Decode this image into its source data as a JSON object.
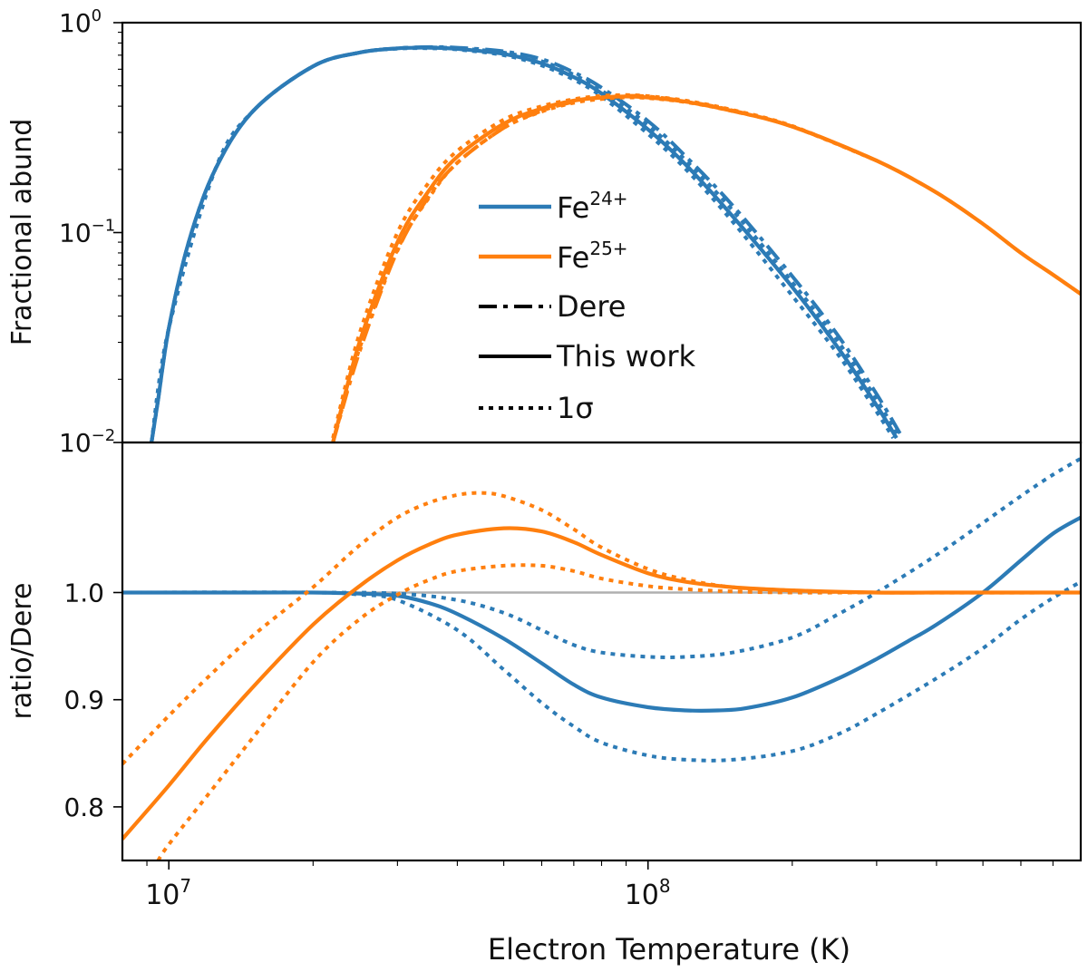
{
  "chart_data": [
    {
      "id": "top",
      "type": "line",
      "title": "",
      "ylabel": "Fractional abund",
      "xlabel": "",
      "x_scale": "log",
      "y_scale": "log",
      "xlim": [
        8000000,
        800000000
      ],
      "ylim": [
        0.01,
        1
      ],
      "y_ticks": [
        {
          "base": "10",
          "exp": "−2",
          "value": 0.01
        },
        {
          "base": "10",
          "exp": "−1",
          "value": 0.1
        },
        {
          "base": "10",
          "exp": "0",
          "value": 1
        }
      ],
      "colors": {
        "fe24": "#2c7bb6",
        "fe25": "#ff7f0e",
        "ink": "#000000"
      },
      "legend": {
        "placement": "center",
        "entries": [
          {
            "name": "fe24",
            "base": "Fe",
            "sup": "24+",
            "style": "solid",
            "color": "#2c7bb6"
          },
          {
            "name": "fe25",
            "base": "Fe",
            "sup": "25+",
            "style": "solid",
            "color": "#ff7f0e"
          },
          {
            "name": "dere",
            "label": "Dere",
            "style": "dashdot",
            "color": "#000000"
          },
          {
            "name": "this-work",
            "label": "This work",
            "style": "solid",
            "color": "#000000"
          },
          {
            "name": "one-sigma",
            "label": "1σ",
            "style": "dotted",
            "color": "#000000"
          }
        ]
      },
      "series": [
        {
          "name": "Fe24+ This work",
          "ion": "fe24",
          "style": "solid",
          "x": [
            9200000,
            9500000,
            10000000,
            11000000,
            12500000,
            15000000,
            20000000,
            25000000,
            30000000,
            35000000,
            40000000,
            50000000,
            60000000,
            70000000,
            80000000,
            100000000,
            120000000,
            150000000,
            200000000,
            250000000,
            300000000,
            330000000
          ],
          "y": [
            0.01,
            0.016,
            0.035,
            0.09,
            0.2,
            0.38,
            0.62,
            0.72,
            0.755,
            0.76,
            0.75,
            0.71,
            0.64,
            0.55,
            0.46,
            0.31,
            0.21,
            0.12,
            0.055,
            0.028,
            0.015,
            0.0105
          ]
        },
        {
          "name": "Fe24+ Dere",
          "ion": "fe24",
          "style": "dashdot",
          "x": [
            9200000,
            9500000,
            10000000,
            11000000,
            12500000,
            15000000,
            20000000,
            25000000,
            30000000,
            35000000,
            40000000,
            50000000,
            60000000,
            70000000,
            80000000,
            100000000,
            120000000,
            150000000,
            200000000,
            250000000,
            300000000,
            340000000
          ],
          "y": [
            0.01,
            0.016,
            0.035,
            0.09,
            0.2,
            0.38,
            0.62,
            0.72,
            0.755,
            0.765,
            0.76,
            0.73,
            0.67,
            0.58,
            0.49,
            0.34,
            0.23,
            0.135,
            0.062,
            0.032,
            0.017,
            0.0105
          ]
        },
        {
          "name": "Fe24+ 1σ upper",
          "ion": "fe24",
          "style": "dotted",
          "x": [
            9200000,
            10000000,
            12500000,
            15000000,
            20000000,
            25000000,
            30000000,
            35000000,
            40000000,
            50000000,
            60000000,
            70000000,
            80000000,
            100000000,
            120000000,
            150000000,
            200000000,
            250000000,
            300000000,
            335000000
          ],
          "y": [
            0.01,
            0.035,
            0.2,
            0.38,
            0.62,
            0.72,
            0.755,
            0.762,
            0.755,
            0.72,
            0.655,
            0.565,
            0.475,
            0.325,
            0.22,
            0.128,
            0.058,
            0.03,
            0.016,
            0.0105
          ]
        },
        {
          "name": "Fe24+ 1σ lower",
          "ion": "fe24",
          "style": "dotted",
          "x": [
            9200000,
            10000000,
            12500000,
            15000000,
            20000000,
            25000000,
            30000000,
            35000000,
            40000000,
            50000000,
            60000000,
            70000000,
            80000000,
            100000000,
            120000000,
            150000000,
            200000000,
            250000000,
            300000000,
            325000000
          ],
          "y": [
            0.01,
            0.035,
            0.2,
            0.38,
            0.62,
            0.72,
            0.752,
            0.755,
            0.745,
            0.7,
            0.625,
            0.535,
            0.445,
            0.295,
            0.2,
            0.113,
            0.05,
            0.026,
            0.014,
            0.0105
          ]
        },
        {
          "name": "Fe25+ This work",
          "ion": "fe25",
          "style": "solid",
          "x": [
            22000000,
            25000000,
            30000000,
            35000000,
            40000000,
            50000000,
            60000000,
            70000000,
            80000000,
            90000000,
            100000000,
            120000000,
            150000000,
            200000000,
            300000000,
            400000000,
            500000000,
            600000000,
            700000000,
            800000000
          ],
          "y": [
            0.01,
            0.03,
            0.09,
            0.16,
            0.23,
            0.33,
            0.39,
            0.425,
            0.44,
            0.445,
            0.44,
            0.42,
            0.38,
            0.32,
            0.22,
            0.155,
            0.11,
            0.08,
            0.063,
            0.051
          ]
        },
        {
          "name": "Fe25+ Dere",
          "ion": "fe25",
          "style": "dashdot",
          "x": [
            22000000,
            25000000,
            30000000,
            35000000,
            40000000,
            50000000,
            60000000,
            70000000,
            80000000,
            90000000,
            100000000,
            120000000,
            150000000,
            200000000,
            300000000,
            400000000,
            500000000,
            600000000,
            700000000,
            800000000
          ],
          "y": [
            0.01,
            0.027,
            0.082,
            0.15,
            0.215,
            0.315,
            0.38,
            0.42,
            0.44,
            0.448,
            0.445,
            0.422,
            0.382,
            0.32,
            0.22,
            0.155,
            0.11,
            0.08,
            0.063,
            0.051
          ]
        },
        {
          "name": "Fe25+ 1σ upper",
          "ion": "fe25",
          "style": "dotted",
          "x": [
            22000000,
            25000000,
            30000000,
            35000000,
            40000000,
            50000000,
            60000000,
            70000000,
            80000000,
            90000000,
            100000000,
            120000000,
            150000000,
            200000000,
            300000000
          ],
          "y": [
            0.0105,
            0.033,
            0.1,
            0.175,
            0.245,
            0.345,
            0.4,
            0.432,
            0.448,
            0.452,
            0.447,
            0.425,
            0.384,
            0.322,
            0.22
          ]
        },
        {
          "name": "Fe25+ 1σ lower",
          "ion": "fe25",
          "style": "dotted",
          "x": [
            22000000,
            25000000,
            30000000,
            35000000,
            40000000,
            50000000,
            60000000,
            70000000,
            80000000,
            90000000,
            100000000,
            120000000,
            150000000,
            200000000,
            300000000
          ],
          "y": [
            0.01,
            0.028,
            0.083,
            0.148,
            0.215,
            0.315,
            0.377,
            0.415,
            0.433,
            0.44,
            0.437,
            0.418,
            0.379,
            0.32,
            0.22
          ]
        }
      ]
    },
    {
      "id": "bottom",
      "type": "line",
      "title": "",
      "ylabel": "ratio/Dere",
      "xlabel": "Electron Temperature (K)",
      "x_scale": "log",
      "y_scale": "linear",
      "xlim": [
        8000000,
        800000000
      ],
      "ylim": [
        0.75,
        1.14
      ],
      "y_ticks": [
        {
          "label": "0.8",
          "value": 0.8
        },
        {
          "label": "0.9",
          "value": 0.9
        },
        {
          "label": "1.0",
          "value": 1.0
        }
      ],
      "x_ticks": [
        {
          "base": "10",
          "exp": "7",
          "value": 10000000
        },
        {
          "base": "10",
          "exp": "8",
          "value": 100000000
        }
      ],
      "reference_line": {
        "value": 1.0,
        "color": "#b0b0b0"
      },
      "colors": {
        "fe24": "#2c7bb6",
        "fe25": "#ff7f0e"
      },
      "series": [
        {
          "name": "Fe24+ This work",
          "ion": "fe24",
          "style": "solid",
          "x": [
            8000000,
            15000000,
            20000000,
            25000000,
            30000000,
            35000000,
            40000000,
            50000000,
            60000000,
            70000000,
            80000000,
            100000000,
            120000000,
            140000000,
            160000000,
            200000000,
            250000000,
            300000000,
            350000000,
            400000000,
            500000000,
            600000000,
            700000000,
            800000000
          ],
          "y": [
            1.0,
            1.0,
            1.0,
            0.999,
            0.997,
            0.99,
            0.98,
            0.957,
            0.934,
            0.914,
            0.902,
            0.893,
            0.89,
            0.89,
            0.892,
            0.902,
            0.92,
            0.938,
            0.955,
            0.97,
            1.0,
            1.03,
            1.055,
            1.07
          ]
        },
        {
          "name": "Fe24+ 1σ upper",
          "ion": "fe24",
          "style": "dotted",
          "x": [
            8000000,
            20000000,
            30000000,
            40000000,
            50000000,
            60000000,
            70000000,
            80000000,
            100000000,
            120000000,
            150000000,
            200000000,
            250000000,
            300000000,
            400000000,
            500000000,
            600000000,
            700000000,
            800000000
          ],
          "y": [
            1.0,
            1.0,
            0.999,
            0.993,
            0.981,
            0.965,
            0.951,
            0.944,
            0.94,
            0.94,
            0.944,
            0.958,
            0.98,
            1.0,
            1.035,
            1.065,
            1.09,
            1.11,
            1.125
          ]
        },
        {
          "name": "Fe24+ 1σ lower",
          "ion": "fe24",
          "style": "dotted",
          "x": [
            8000000,
            20000000,
            25000000,
            30000000,
            40000000,
            50000000,
            60000000,
            70000000,
            80000000,
            100000000,
            120000000,
            150000000,
            200000000,
            250000000,
            300000000,
            400000000,
            500000000,
            600000000,
            700000000,
            800000000
          ],
          "y": [
            1.0,
            1.0,
            0.998,
            0.993,
            0.965,
            0.928,
            0.897,
            0.875,
            0.86,
            0.848,
            0.844,
            0.844,
            0.852,
            0.868,
            0.887,
            0.92,
            0.948,
            0.975,
            0.995,
            1.01
          ]
        },
        {
          "name": "Fe25+ This work",
          "ion": "fe25",
          "style": "solid",
          "x": [
            8000000,
            10000000,
            12000000,
            15000000,
            20000000,
            25000000,
            30000000,
            35000000,
            40000000,
            50000000,
            60000000,
            70000000,
            80000000,
            100000000,
            120000000,
            150000000,
            200000000,
            300000000,
            400000000,
            600000000,
            800000000
          ],
          "y": [
            0.77,
            0.82,
            0.863,
            0.912,
            0.97,
            1.006,
            1.03,
            1.045,
            1.054,
            1.06,
            1.057,
            1.047,
            1.035,
            1.018,
            1.01,
            1.005,
            1.002,
            1.0,
            1.0,
            1.0,
            1.0
          ]
        },
        {
          "name": "Fe25+ 1σ upper",
          "ion": "fe25",
          "style": "dotted",
          "x": [
            8000000,
            10000000,
            12000000,
            15000000,
            20000000,
            25000000,
            30000000,
            35000000,
            40000000,
            45000000,
            50000000,
            60000000,
            70000000,
            80000000,
            100000000,
            120000000,
            150000000,
            200000000,
            300000000,
            800000000
          ],
          "y": [
            0.84,
            0.885,
            0.92,
            0.96,
            1.005,
            1.044,
            1.07,
            1.084,
            1.091,
            1.093,
            1.09,
            1.077,
            1.059,
            1.042,
            1.022,
            1.012,
            1.005,
            1.002,
            1.0,
            1.0
          ]
        },
        {
          "name": "Fe25+ 1σ lower",
          "ion": "fe25",
          "style": "dotted",
          "x": [
            9500000,
            10000000,
            12000000,
            15000000,
            20000000,
            25000000,
            30000000,
            35000000,
            40000000,
            50000000,
            60000000,
            70000000,
            80000000,
            100000000,
            120000000,
            150000000,
            200000000,
            300000000,
            800000000
          ],
          "y": [
            0.75,
            0.765,
            0.81,
            0.865,
            0.935,
            0.975,
            0.998,
            1.012,
            1.02,
            1.025,
            1.025,
            1.02,
            1.013,
            1.006,
            1.003,
            1.001,
            1.0,
            1.0,
            1.0
          ]
        }
      ]
    }
  ]
}
